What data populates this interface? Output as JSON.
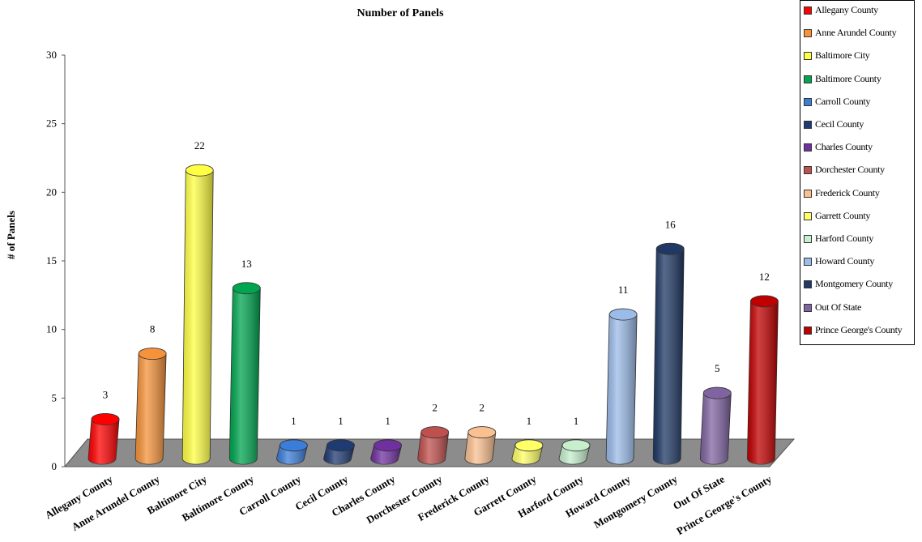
{
  "chart_data": {
    "type": "bar",
    "title": "Number of Panels",
    "xlabel": "",
    "ylabel": "# of Panels",
    "ylim": [
      0,
      30
    ],
    "yticks": [
      0,
      5,
      10,
      15,
      20,
      25,
      30
    ],
    "grid": false,
    "legend_position": "top-right",
    "categories": [
      "Allegany County",
      "Anne Arundel County",
      "Baltimore City",
      "Baltimore County",
      "Carroll County",
      "Cecil County",
      "Charles County",
      "Dorchester County",
      "Frederick County",
      "Garrett County",
      "Harford County",
      "Howard County",
      "Montgomery County",
      "Out Of State",
      "Prince George's County"
    ],
    "values": [
      3,
      8,
      22,
      13,
      1,
      1,
      1,
      2,
      2,
      1,
      1,
      11,
      16,
      5,
      12
    ],
    "colors": [
      "#ff0000",
      "#f5923a",
      "#ffff44",
      "#00a550",
      "#3b7dd8",
      "#1f3b73",
      "#7030a0",
      "#c0504d",
      "#fac090",
      "#ffff66",
      "#c6efce",
      "#9bbbe8",
      "#1f3864",
      "#8064a2",
      "#c00000"
    ],
    "legend": [
      "Allegany County",
      "Anne Arundel County",
      "Baltimore City",
      "Baltimore County",
      "Carroll County",
      "Cecil County",
      "Charles County",
      "Dorchester County",
      "Frederick County",
      "Garrett County",
      "Harford County",
      "Howard County",
      "Montgomery County",
      "Out Of State",
      "Prince George's County"
    ]
  }
}
